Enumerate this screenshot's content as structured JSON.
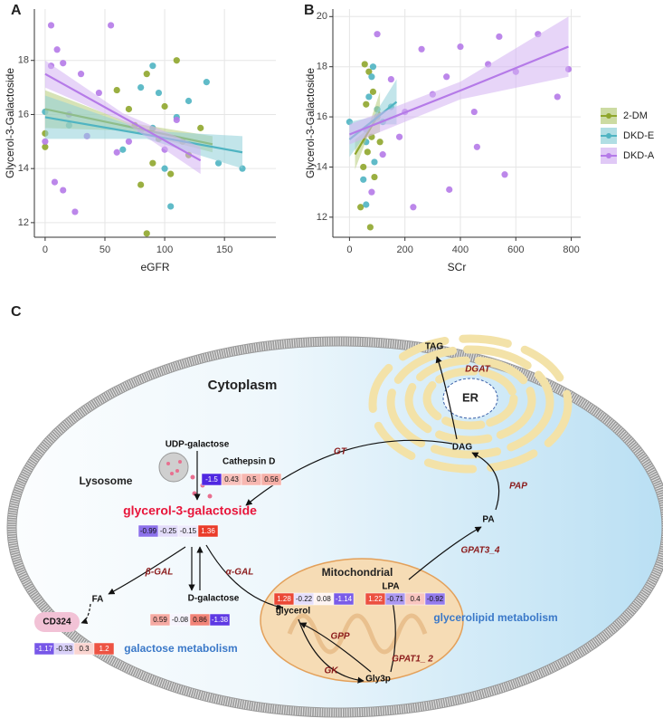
{
  "chart_data": [
    {
      "type": "scatter",
      "panel_label": "A",
      "x_label": "eGFR",
      "y_label": "Glycerol-3-Galactoside",
      "xlim": [
        -9,
        193
      ],
      "ylim": [
        11.46,
        19.9
      ],
      "xticks": [
        0,
        50,
        100,
        150
      ],
      "yticks": [
        12,
        14,
        16,
        18
      ],
      "grid": true,
      "series": [
        {
          "name": "2-DM",
          "color": "#8fa62c",
          "band_color": "#b7cc7a",
          "x": [
            0,
            0,
            60,
            75,
            80,
            85,
            90,
            95,
            100,
            105,
            110,
            115,
            120,
            85,
            130,
            70
          ],
          "y": [
            15.3,
            14.8,
            16.9,
            15.6,
            13.4,
            17.5,
            14.2,
            15.1,
            16.3,
            13.8,
            18.0,
            15.0,
            14.5,
            11.6,
            15.5,
            16.2
          ],
          "fit": {
            "x": [
              0,
              70,
              140
            ],
            "y": [
              16.2,
              15.55,
              14.9
            ],
            "lower": [
              15.5,
              15.4,
              14.6
            ],
            "upper": [
              16.9,
              15.7,
              15.2
            ]
          }
        },
        {
          "name": "DKD-E",
          "color": "#4fb4c2",
          "band_color": "#8fd0d8",
          "x": [
            0,
            20,
            65,
            80,
            90,
            95,
            100,
            110,
            120,
            135,
            145,
            165,
            105,
            90
          ],
          "y": [
            16.1,
            15.6,
            14.7,
            17.0,
            15.5,
            16.8,
            14.0,
            15.9,
            16.5,
            17.2,
            14.2,
            14.0,
            12.6,
            17.8
          ],
          "fit": {
            "x": [
              0,
              85,
              165
            ],
            "y": [
              15.9,
              15.25,
              14.6
            ],
            "lower": [
              15.1,
              15.1,
              14.0
            ],
            "upper": [
              16.7,
              15.4,
              15.2
            ]
          }
        },
        {
          "name": "DKD-A",
          "color": "#b57ae8",
          "band_color": "#d3b2f2",
          "x": [
            5,
            10,
            5,
            15,
            20,
            25,
            8,
            30,
            35,
            55,
            60,
            45,
            70,
            80,
            100,
            110,
            0,
            15
          ],
          "y": [
            19.3,
            18.4,
            17.8,
            17.9,
            16.0,
            12.4,
            13.5,
            17.5,
            15.2,
            19.3,
            14.6,
            16.8,
            15.0,
            15.4,
            14.7,
            15.8,
            15.0,
            13.2
          ],
          "fit": {
            "x": [
              0,
              65,
              130
            ],
            "y": [
              17.5,
              15.9,
              14.3
            ],
            "lower": [
              17.0,
              15.75,
              13.8
            ],
            "upper": [
              18.0,
              16.05,
              14.8
            ]
          }
        }
      ]
    },
    {
      "type": "scatter",
      "panel_label": "B",
      "x_label": "SCr",
      "y_label": "Glycerol-3-Galactoside",
      "xlim": [
        -60,
        834
      ],
      "ylim": [
        11.2,
        20.3
      ],
      "xticks": [
        0,
        200,
        400,
        600,
        800
      ],
      "yticks": [
        12,
        14,
        16,
        18,
        20
      ],
      "grid": true,
      "legend": "right",
      "series": [
        {
          "name": "2-DM",
          "color": "#8fa62c",
          "band_color": "#b7cc7a",
          "x": [
            40,
            50,
            60,
            70,
            80,
            90,
            100,
            55,
            75,
            110,
            65,
            85
          ],
          "y": [
            12.4,
            14.0,
            16.5,
            17.8,
            15.2,
            13.6,
            16.0,
            18.1,
            11.6,
            15.0,
            14.6,
            17.0
          ],
          "fit": {
            "x": [
              20,
              65,
              110
            ],
            "y": [
              14.5,
              15.35,
              16.2
            ],
            "lower": [
              13.9,
              15.2,
              15.4
            ],
            "upper": [
              15.1,
              15.5,
              17.0
            ]
          }
        },
        {
          "name": "DKD-E",
          "color": "#4fb4c2",
          "band_color": "#8fd0d8",
          "x": [
            0,
            50,
            60,
            70,
            80,
            90,
            100,
            120,
            150,
            60,
            85
          ],
          "y": [
            15.8,
            13.5,
            15.0,
            16.8,
            17.6,
            14.2,
            16.3,
            15.8,
            16.4,
            12.5,
            18.0
          ],
          "fit": {
            "x": [
              0,
              85,
              170
            ],
            "y": [
              15.1,
              15.85,
              16.6
            ],
            "lower": [
              14.4,
              15.7,
              15.7
            ],
            "upper": [
              15.8,
              16.0,
              17.5
            ]
          }
        },
        {
          "name": "DKD-A",
          "color": "#b57ae8",
          "band_color": "#d3b2f2",
          "x": [
            60,
            80,
            100,
            150,
            200,
            230,
            260,
            300,
            350,
            360,
            400,
            450,
            460,
            500,
            540,
            560,
            600,
            680,
            750,
            790,
            120,
            180
          ],
          "y": [
            15.5,
            13.0,
            19.3,
            17.5,
            16.2,
            12.4,
            18.7,
            16.9,
            17.6,
            13.1,
            18.8,
            16.2,
            14.8,
            18.1,
            19.2,
            13.7,
            17.8,
            19.3,
            16.8,
            17.9,
            14.5,
            15.2
          ],
          "fit": {
            "x": [
              0,
              400,
              790
            ],
            "y": [
              15.3,
              17.05,
              18.8
            ],
            "lower": [
              14.9,
              16.7,
              17.6
            ],
            "upper": [
              15.7,
              17.4,
              20.0
            ]
          }
        }
      ]
    }
  ],
  "diagram": {
    "panel_label": "C",
    "cytoplasm": "Cytoplasm",
    "lysosome": "Lysosome",
    "mitochondrial": "Mitochondrial",
    "er": "ER",
    "pathways": {
      "galactose": "galactose metabolism",
      "glycerolipid": "glycerolipid metabolism"
    },
    "metabolites": {
      "udp_galactose": "UDP-galactose",
      "g3g": "glycerol-3-galactoside",
      "fa": "FA",
      "d_galactose": "D-galactose",
      "glycerol": "glycerol",
      "gly3p": "Gly3p",
      "lpa": "LPA",
      "pa": "PA",
      "dag": "DAG",
      "tag": "TAG"
    },
    "enzymes": {
      "cathepsin_d": "Cathepsin D",
      "cd324": "CD324",
      "beta_gal": "β-GAL",
      "alpha_gal": "α-GAL",
      "gk": "GK",
      "gpp": "GPP",
      "gpat1_2": "GPAT1_ 2",
      "gpat3_4": "GPAT3_4",
      "pap": "PAP",
      "dgat": "DGAT",
      "gt": "GT"
    },
    "heatmaps": {
      "cathepsin_d": [
        -1.5,
        0.43,
        0.5,
        0.56
      ],
      "g3g": [
        -0.99,
        -0.25,
        -0.15,
        1.36
      ],
      "d_galactose": [
        0.59,
        -0.08,
        0.86,
        -1.38
      ],
      "cd324": [
        -1.17,
        -0.33,
        0.3,
        1.2
      ],
      "glycerol": [
        1.28,
        -0.22,
        0.08,
        -1.14
      ],
      "lpa": [
        1.22,
        -0.71,
        0.4,
        -0.92
      ]
    }
  }
}
